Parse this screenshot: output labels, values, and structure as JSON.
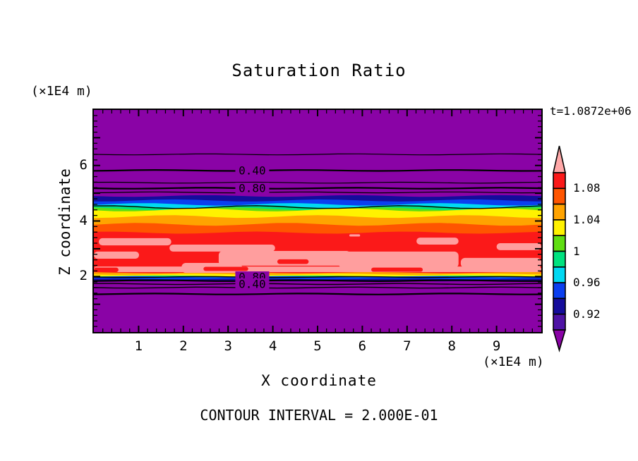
{
  "labels": {
    "title": "Saturation Ratio",
    "time": "t=1.0872e+06",
    "top_unit": "(×1E4 m)",
    "bottom_unit": "(×1E4 m)",
    "x_title": "X coordinate",
    "y_title": "Z coordinate",
    "footer": "CONTOUR INTERVAL = 2.000E-01"
  },
  "chart_data": {
    "type": "heatmap",
    "title": "Saturation Ratio",
    "xlabel": "X coordinate",
    "ylabel": "Z coordinate",
    "axis_unit": "(×1E4 m)",
    "time_annotation": "t=1.0872e+06",
    "contour_interval": "2.000E-01",
    "xlim": [
      0,
      10
    ],
    "ylim": [
      0,
      8
    ],
    "x_tick_labels": [
      "1",
      "2",
      "3",
      "4",
      "5",
      "6",
      "7",
      "8",
      "9"
    ],
    "y_tick_labels": [
      "6",
      "4",
      "2"
    ],
    "y_tick_values": [
      6,
      4,
      2
    ],
    "minor_tick_step": 0.2,
    "plot_bg_color": "#8A03A6",
    "bands": [
      {
        "name": "navy-upper",
        "color": "#150C9B",
        "z_top": 4.9,
        "z_bottom": 4.72,
        "amp": 1.2
      },
      {
        "name": "blue-upper",
        "color": "#0B3FEF",
        "z_top": 4.74,
        "z_bottom": 4.56,
        "amp": 1.5
      },
      {
        "name": "cyan-upper",
        "color": "#00D8F2",
        "z_top": 4.6,
        "z_bottom": 4.47,
        "amp": 1.8
      },
      {
        "name": "green-upper",
        "color": "#00E27F",
        "z_top": 4.51,
        "z_bottom": 4.39,
        "amp": 2.0
      },
      {
        "name": "chartreuse-upper",
        "color": "#5FDE12",
        "z_top": 4.44,
        "z_bottom": 4.33,
        "amp": 2.0
      },
      {
        "name": "yellow-band",
        "color": "#FFF200",
        "z_top": 4.4,
        "z_bottom": 4.08,
        "amp": 2.2
      },
      {
        "name": "orange-band",
        "color": "#FFA300",
        "z_top": 4.16,
        "z_bottom": 3.8,
        "amp": 2.0
      },
      {
        "name": "orangered-band",
        "color": "#FF5500",
        "z_top": 3.88,
        "z_bottom": 3.5,
        "amp": 2.0
      },
      {
        "name": "red-band",
        "color": "#FB1919",
        "z_top": 3.58,
        "z_bottom": 2.07,
        "amp": 1.5
      },
      {
        "name": "orange-lower",
        "color": "#FFA300",
        "z_top": 2.14,
        "z_bottom": 2.05,
        "amp": 0.8
      },
      {
        "name": "yellow-lower",
        "color": "#FFF200",
        "z_top": 2.08,
        "z_bottom": 2.0,
        "amp": 0.8
      },
      {
        "name": "green-lower",
        "color": "#00E27F",
        "z_top": 2.02,
        "z_bottom": 1.97,
        "amp": 0.6
      },
      {
        "name": "blue-lower",
        "color": "#0B3FEF",
        "z_top": 1.99,
        "z_bottom": 1.88,
        "amp": 0.8
      },
      {
        "name": "navy-lower",
        "color": "#150C9B",
        "z_top": 1.91,
        "z_bottom": 1.84,
        "amp": 0.6
      }
    ],
    "streaks": [
      {
        "color": "#FF9E9E",
        "x0": 0.11,
        "x1": 1.73,
        "z_top": 3.38,
        "z_bottom": 3.12
      },
      {
        "color": "#FF9E9E",
        "x0": 0.0,
        "x1": 1.01,
        "z_top": 2.9,
        "z_bottom": 2.64
      },
      {
        "color": "#FF9E9E",
        "x0": 1.69,
        "x1": 4.05,
        "z_top": 3.15,
        "z_bottom": 2.9
      },
      {
        "color": "#FF9E9E",
        "x0": 2.79,
        "x1": 5.74,
        "z_top": 2.92,
        "z_bottom": 2.39
      },
      {
        "color": "#FF9E9E",
        "x0": 1.96,
        "x1": 3.31,
        "z_top": 2.49,
        "z_bottom": 2.13
      },
      {
        "color": "#FF9E9E",
        "x0": 5.47,
        "x1": 8.15,
        "z_top": 2.9,
        "z_bottom": 2.31
      },
      {
        "color": "#FF9E9E",
        "x0": 7.21,
        "x1": 8.15,
        "z_top": 3.4,
        "z_bottom": 3.15
      },
      {
        "color": "#FF9E9E",
        "x0": 8.2,
        "x1": 10.0,
        "z_top": 2.67,
        "z_bottom": 2.31
      },
      {
        "color": "#FF9E9E",
        "x0": 9.0,
        "x1": 10.0,
        "z_top": 3.2,
        "z_bottom": 2.95
      },
      {
        "color": "#FF9E9E",
        "x0": 0.0,
        "x1": 10.0,
        "z_top": 2.36,
        "z_bottom": 2.16
      },
      {
        "color": "#FF9E9E",
        "x0": 5.71,
        "x1": 5.95,
        "z_top": 3.52,
        "z_bottom": 3.44
      },
      {
        "color": "#FB1919",
        "x0": 0.0,
        "x1": 0.55,
        "z_top": 2.32,
        "z_bottom": 2.16
      },
      {
        "color": "#FB1919",
        "x0": 2.45,
        "x1": 3.45,
        "z_top": 2.35,
        "z_bottom": 2.2
      },
      {
        "color": "#FB1919",
        "x0": 6.2,
        "x1": 7.35,
        "z_top": 2.32,
        "z_bottom": 2.17
      },
      {
        "color": "#FB1919",
        "x0": 4.1,
        "x1": 4.8,
        "z_top": 2.62,
        "z_bottom": 2.45
      }
    ],
    "contour_lines": [
      {
        "z": 6.4,
        "w": 1.2
      },
      {
        "z": 5.82,
        "w": 2.2,
        "label": "0.40"
      },
      {
        "z": 5.38,
        "w": 1.2
      },
      {
        "z": 5.18,
        "w": 2.2,
        "label": "0.80"
      },
      {
        "z": 5.03,
        "w": 1.2
      },
      {
        "z": 4.5,
        "w": 1.4,
        "amp": 2.0
      },
      {
        "z": 1.98,
        "w": 1.4,
        "label": "0.80"
      },
      {
        "z": 1.85,
        "w": 2.2
      },
      {
        "z": 1.73,
        "w": 1.4,
        "label": "0.40"
      },
      {
        "z": 1.6,
        "w": 1.4
      },
      {
        "z": 1.37,
        "w": 2.2
      }
    ],
    "contour_label_x": 3.54,
    "colorbar": {
      "segment_colors": [
        "#FB1919",
        "#FF5500",
        "#FFA300",
        "#FFF200",
        "#5FDE12",
        "#00E27F",
        "#00D8F2",
        "#0B3FEF",
        "#150C9B",
        "#4E13A5"
      ],
      "labels": [
        {
          "text": "1.08",
          "boundary": 1
        },
        {
          "text": "1.04",
          "boundary": 3
        },
        {
          "text": "1",
          "boundary": 5
        },
        {
          "text": "0.96",
          "boundary": 7
        },
        {
          "text": "0.92",
          "boundary": 9
        }
      ],
      "arrow_top_color": "#FFA8A8",
      "arrow_bottom_color": "#8A03A6"
    }
  }
}
